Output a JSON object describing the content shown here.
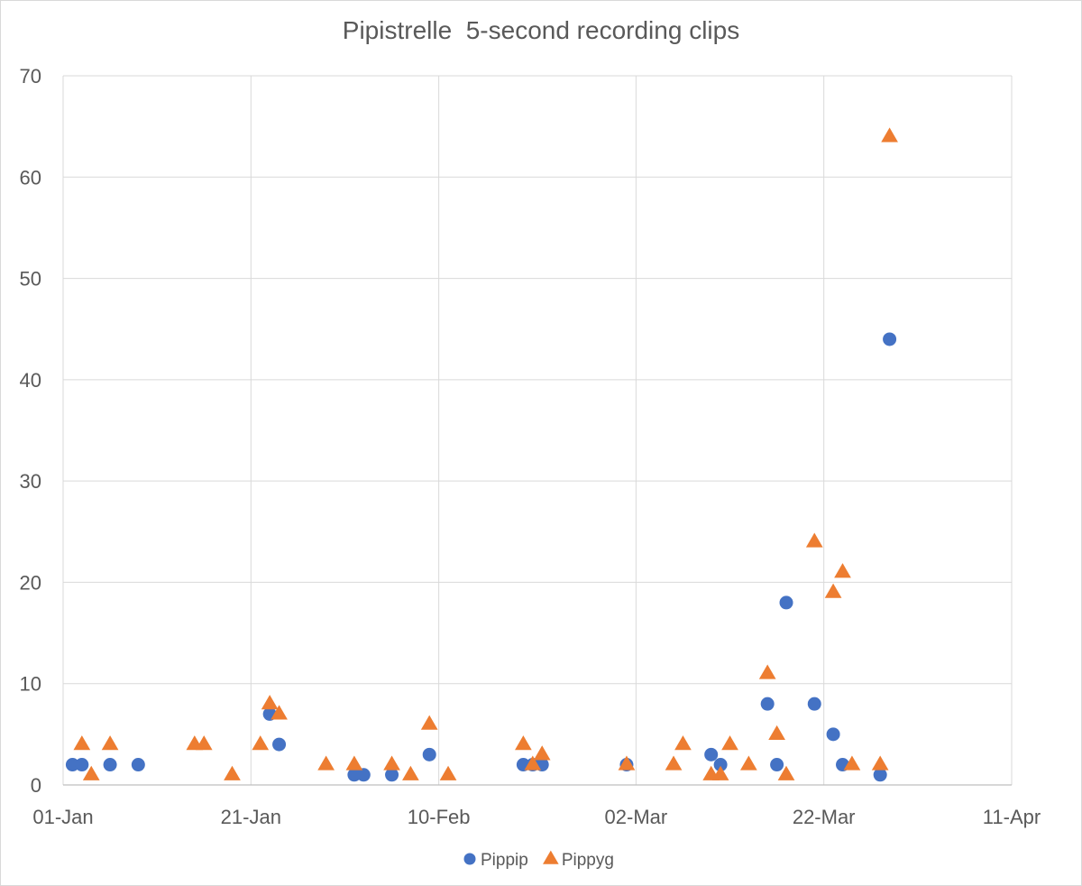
{
  "chart_data": {
    "type": "scatter",
    "title": "Pipistrelle  5-second recording clips",
    "xlabel": "",
    "ylabel": "",
    "x_axis": {
      "type": "date",
      "year": 2024,
      "min": "2024-01-01",
      "max": "2024-04-11",
      "tick_labels": [
        "01-Jan",
        "21-Jan",
        "10-Feb",
        "02-Mar",
        "22-Mar",
        "11-Apr"
      ],
      "tick_dates": [
        "2024-01-01",
        "2024-01-21",
        "2024-02-10",
        "2024-03-02",
        "2024-03-22",
        "2024-04-11"
      ]
    },
    "ylim": [
      0,
      70
    ],
    "y_ticks": [
      0,
      10,
      20,
      30,
      40,
      50,
      60,
      70
    ],
    "grid": true,
    "legend_position": "bottom",
    "series": [
      {
        "name": "Pippip",
        "marker": "circle",
        "color": "#4472c4",
        "points": [
          {
            "x": "2024-01-02",
            "y": 2
          },
          {
            "x": "2024-01-03",
            "y": 2
          },
          {
            "x": "2024-01-06",
            "y": 2
          },
          {
            "x": "2024-01-09",
            "y": 2
          },
          {
            "x": "2024-01-23",
            "y": 7
          },
          {
            "x": "2024-01-24",
            "y": 4
          },
          {
            "x": "2024-02-01",
            "y": 1
          },
          {
            "x": "2024-02-02",
            "y": 1
          },
          {
            "x": "2024-02-05",
            "y": 1
          },
          {
            "x": "2024-02-09",
            "y": 3
          },
          {
            "x": "2024-02-19",
            "y": 2
          },
          {
            "x": "2024-02-20",
            "y": 2
          },
          {
            "x": "2024-02-21",
            "y": 2
          },
          {
            "x": "2024-03-01",
            "y": 2
          },
          {
            "x": "2024-03-10",
            "y": 3
          },
          {
            "x": "2024-03-11",
            "y": 2
          },
          {
            "x": "2024-03-16",
            "y": 8
          },
          {
            "x": "2024-03-17",
            "y": 2
          },
          {
            "x": "2024-03-18",
            "y": 18
          },
          {
            "x": "2024-03-21",
            "y": 8
          },
          {
            "x": "2024-03-23",
            "y": 5
          },
          {
            "x": "2024-03-24",
            "y": 2
          },
          {
            "x": "2024-03-28",
            "y": 1
          },
          {
            "x": "2024-03-29",
            "y": 44
          }
        ]
      },
      {
        "name": "Pippyg",
        "marker": "triangle",
        "color": "#ed7d31",
        "points": [
          {
            "x": "2024-01-03",
            "y": 4
          },
          {
            "x": "2024-01-04",
            "y": 1
          },
          {
            "x": "2024-01-06",
            "y": 4
          },
          {
            "x": "2024-01-15",
            "y": 4
          },
          {
            "x": "2024-01-16",
            "y": 4
          },
          {
            "x": "2024-01-19",
            "y": 1
          },
          {
            "x": "2024-01-22",
            "y": 4
          },
          {
            "x": "2024-01-23",
            "y": 8
          },
          {
            "x": "2024-01-24",
            "y": 7
          },
          {
            "x": "2024-01-29",
            "y": 2
          },
          {
            "x": "2024-02-01",
            "y": 2
          },
          {
            "x": "2024-02-05",
            "y": 2
          },
          {
            "x": "2024-02-07",
            "y": 1
          },
          {
            "x": "2024-02-09",
            "y": 6
          },
          {
            "x": "2024-02-11",
            "y": 1
          },
          {
            "x": "2024-02-19",
            "y": 4
          },
          {
            "x": "2024-02-20",
            "y": 2
          },
          {
            "x": "2024-02-21",
            "y": 3
          },
          {
            "x": "2024-03-01",
            "y": 2
          },
          {
            "x": "2024-03-06",
            "y": 2
          },
          {
            "x": "2024-03-07",
            "y": 4
          },
          {
            "x": "2024-03-10",
            "y": 1
          },
          {
            "x": "2024-03-11",
            "y": 1
          },
          {
            "x": "2024-03-12",
            "y": 4
          },
          {
            "x": "2024-03-14",
            "y": 2
          },
          {
            "x": "2024-03-16",
            "y": 11
          },
          {
            "x": "2024-03-17",
            "y": 5
          },
          {
            "x": "2024-03-18",
            "y": 1
          },
          {
            "x": "2024-03-21",
            "y": 24
          },
          {
            "x": "2024-03-23",
            "y": 19
          },
          {
            "x": "2024-03-24",
            "y": 21
          },
          {
            "x": "2024-03-25",
            "y": 2
          },
          {
            "x": "2024-03-28",
            "y": 2
          },
          {
            "x": "2024-03-29",
            "y": 64
          }
        ]
      }
    ]
  }
}
